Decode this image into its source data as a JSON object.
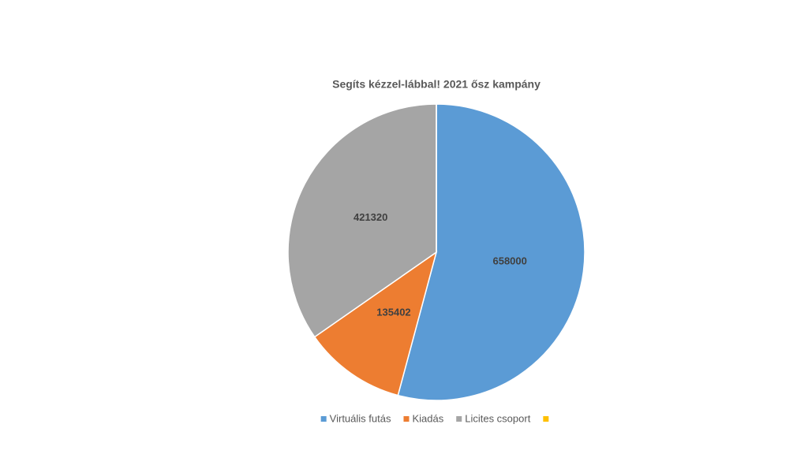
{
  "chart_data": {
    "type": "pie",
    "title": "Segíts kézzel-lábbal!  2021 ősz kampány",
    "categories": [
      "Virtuális futás",
      "Kiadás",
      "Licites csoport",
      null
    ],
    "values": [
      658000,
      135402,
      421320,
      0
    ],
    "colors": [
      "#5b9bd5",
      "#ed7d31",
      "#a5a5a5",
      "#ffc000"
    ],
    "legend": "bottom"
  }
}
